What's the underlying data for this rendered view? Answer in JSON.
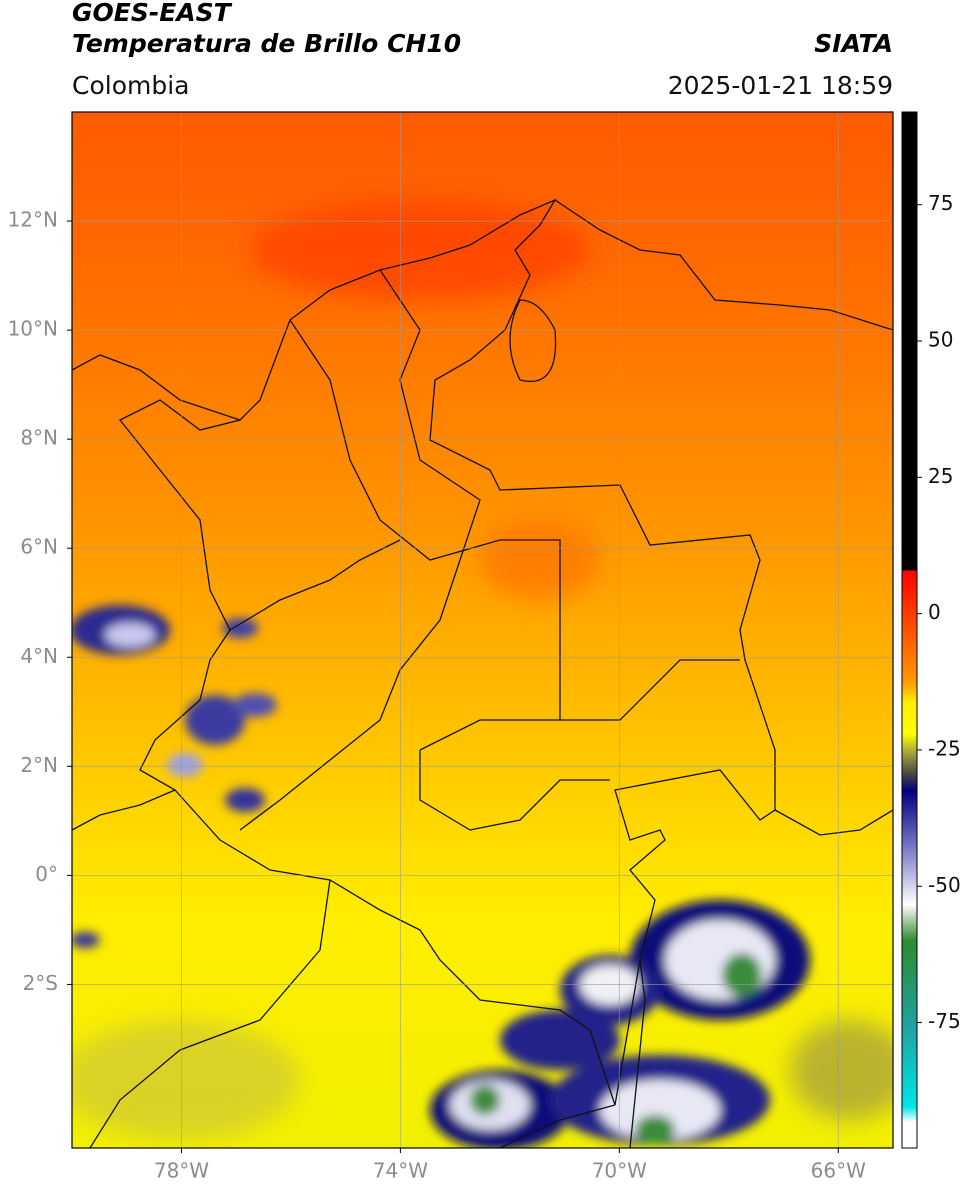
{
  "header": {
    "satellite": "GOES-EAST",
    "product": "Temperatura de Brillo CH10",
    "region": "Colombia",
    "source": "SIATA",
    "datetime": "2025-01-21 18:59"
  },
  "map": {
    "xlim": [
      -80,
      -65
    ],
    "ylim": [
      -5,
      14
    ],
    "lon_ticks": [
      {
        "value": -78,
        "label": "78°W"
      },
      {
        "value": -74,
        "label": "74°W"
      },
      {
        "value": -70,
        "label": "70°W"
      },
      {
        "value": -66,
        "label": "66°W"
      }
    ],
    "lat_ticks": [
      {
        "value": 12,
        "label": "12°N"
      },
      {
        "value": 10,
        "label": "10°N"
      },
      {
        "value": 8,
        "label": "8°N"
      },
      {
        "value": 6,
        "label": "6°N"
      },
      {
        "value": 4,
        "label": "4°N"
      },
      {
        "value": 2,
        "label": "2°N"
      },
      {
        "value": 0,
        "label": "0°"
      },
      {
        "value": -2,
        "label": "2°S"
      }
    ]
  },
  "colorbar": {
    "lim": [
      -98,
      92
    ],
    "ticks": [
      75,
      50,
      25,
      0,
      -25,
      -50,
      -75
    ]
  }
}
